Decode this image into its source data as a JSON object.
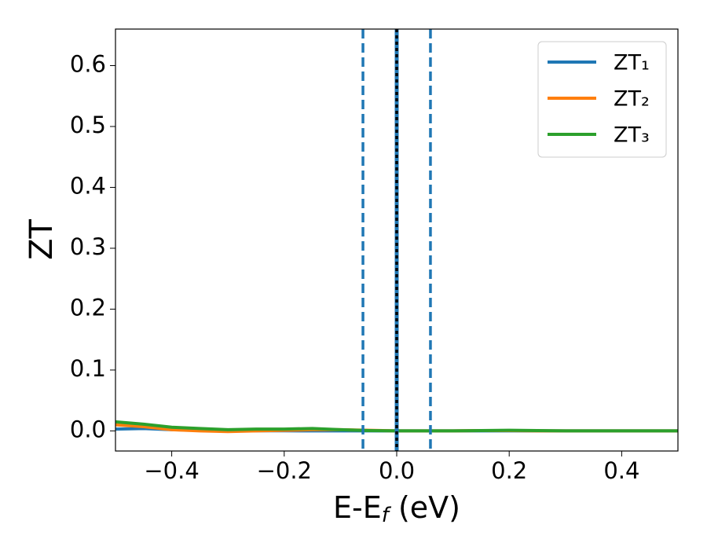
{
  "chart_data": {
    "type": "line",
    "xlabel": [
      "E-E",
      "f",
      " (eV)"
    ],
    "ylabel": "ZT",
    "x": [
      -0.5,
      -0.45,
      -0.4,
      -0.35,
      -0.3,
      -0.25,
      -0.2,
      -0.15,
      -0.1,
      -0.05,
      0.0,
      0.05,
      0.1,
      0.15,
      0.2,
      0.25,
      0.3,
      0.35,
      0.4,
      0.45,
      0.5
    ],
    "series": [
      {
        "name": "ZT₁",
        "color": "#1f77b4",
        "values": [
          0.003,
          0.004,
          0.002,
          0.001,
          0.0005,
          0.0003,
          0.0002,
          0.0001,
          0.0001,
          0,
          0,
          0,
          0,
          0,
          0,
          0,
          0,
          0,
          0,
          0,
          0
        ]
      },
      {
        "name": "ZT₂",
        "color": "#ff7f0e",
        "values": [
          0.01,
          0.007,
          0.002,
          0,
          -0.001,
          0,
          0.001,
          0.002,
          0.002,
          0.001,
          0,
          0,
          0,
          0.0005,
          0.0005,
          0,
          0,
          0,
          0,
          0,
          0
        ]
      },
      {
        "name": "ZT₃",
        "color": "#2ca02c",
        "values": [
          0.015,
          0.011,
          0.006,
          0.004,
          0.002,
          0.003,
          0.003,
          0.004,
          0.002,
          0.0005,
          0,
          0,
          0,
          0.0005,
          0.001,
          0.0005,
          0,
          0,
          0,
          0,
          0
        ]
      }
    ],
    "vlines": [
      {
        "x": 0,
        "color": "#1f77b4",
        "style": "solid"
      },
      {
        "x": 0,
        "color": "#000000",
        "style": "dotted"
      },
      {
        "x": -0.06,
        "color": "#1f77b4",
        "style": "dashed"
      },
      {
        "x": 0.06,
        "color": "#1f77b4",
        "style": "dashed"
      }
    ],
    "xlim": [
      -0.5,
      0.5
    ],
    "ylim": [
      -0.033,
      0.66
    ],
    "xticks": [
      {
        "value": -0.4,
        "label": "−0.4"
      },
      {
        "value": -0.2,
        "label": "−0.2"
      },
      {
        "value": 0,
        "label": "0.0"
      },
      0.2,
      0.4
    ],
    "yticks": [
      {
        "value": 0,
        "label": "0.0"
      },
      0.1,
      0.2,
      0.3,
      0.4,
      0.5,
      0.6
    ],
    "grid": false,
    "legend": "upper right"
  }
}
